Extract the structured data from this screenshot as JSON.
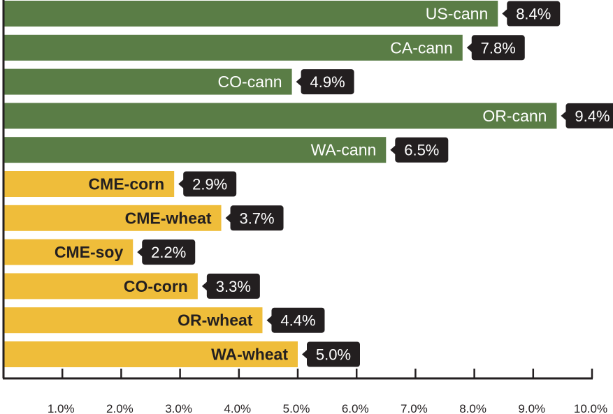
{
  "chart_data": {
    "type": "bar",
    "orientation": "horizontal",
    "categories": [
      "US-cann",
      "CA-cann",
      "CO-cann",
      "OR-cann",
      "WA-cann",
      "CME-corn",
      "CME-wheat",
      "CME-soy",
      "CO-corn",
      "OR-wheat",
      "WA-wheat"
    ],
    "values": [
      8.4,
      7.8,
      4.9,
      9.4,
      6.5,
      2.9,
      3.7,
      2.2,
      3.3,
      4.4,
      5.0
    ],
    "value_labels": [
      "8.4%",
      "7.8%",
      "4.9%",
      "9.4%",
      "6.5%",
      "2.9%",
      "3.7%",
      "2.2%",
      "3.3%",
      "4.4%",
      "5.0%"
    ],
    "groups": [
      "cannabis",
      "cannabis",
      "cannabis",
      "cannabis",
      "cannabis",
      "grain",
      "grain",
      "grain",
      "grain",
      "grain",
      "grain"
    ],
    "colors": {
      "cannabis": "#5a7d46",
      "grain": "#efbd3a",
      "label_box": "#231f20",
      "axis": "#231f20"
    },
    "xlim": [
      0,
      10
    ],
    "x_ticks": [
      1,
      2,
      3,
      4,
      5,
      6,
      7,
      8,
      9,
      10
    ],
    "x_tick_labels": [
      "1.0%",
      "2.0%",
      "3.0%",
      "4.0%",
      "5.0%",
      "6.0%",
      "7.0%",
      "8.0%",
      "9.0%",
      "10.0%"
    ],
    "title": "",
    "xlabel": "",
    "ylabel": "",
    "grid": false
  }
}
